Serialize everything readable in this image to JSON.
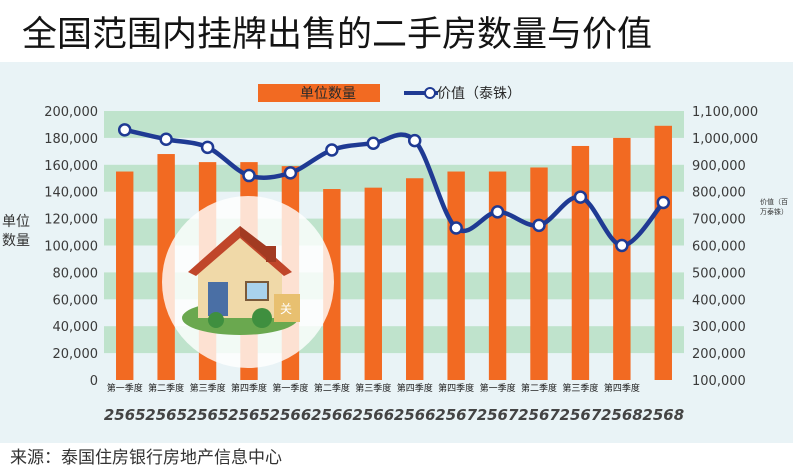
{
  "title": "全国范围内挂牌出售的二手房数量与价值",
  "source": "来源：泰国住房银行房地产信息中心",
  "house_label": "关",
  "colors": {
    "bar": "#f26a22",
    "line": "#1f3a93",
    "band": "#bfe3cc",
    "panel": "#e9f3f6"
  },
  "icons": [
    "house-icon"
  ],
  "chart_data": {
    "type": "bar",
    "legend_placement": "top-center",
    "grid": true,
    "ylabel": "单位数量",
    "y2label": "价值（百万泰铢）",
    "ylim": [
      0,
      200000
    ],
    "y2lim": [
      100000,
      1100000
    ],
    "y_ticks": [
      "0",
      "20,000",
      "40,000",
      "60,000",
      "80,000",
      "100,000",
      "120,000",
      "140,000",
      "160,000",
      "180,000",
      "200,000"
    ],
    "y2_ticks": [
      "100,000",
      "200,000",
      "300,000",
      "400,000",
      "500,000",
      "600,000",
      "700,000",
      "800,000",
      "900,000",
      "1,000,000",
      "1,100,000"
    ],
    "categories": [
      "第一季度",
      "第二季度",
      "第三季度",
      "第四季度",
      "第一季度",
      "第二季度",
      "第三季度",
      "第四季度",
      "第四季度",
      "第一季度",
      "第二季度",
      "第三季度",
      "第四季度",
      ""
    ],
    "years": [
      "2565",
      "2565",
      "2565",
      "2565",
      "2566",
      "2566",
      "2566",
      "2566",
      "2567",
      "2567",
      "2567",
      "2567",
      "2568",
      "2568"
    ],
    "series": [
      {
        "name": "单位数量",
        "type": "bar",
        "axis": "left",
        "values": [
          155000,
          168000,
          162000,
          162000,
          159000,
          142000,
          143000,
          150000,
          155000,
          155000,
          158000,
          174000,
          180000,
          189000
        ]
      },
      {
        "name": "价值（泰铢）",
        "type": "line",
        "axis": "right",
        "values": [
          1030000,
          995000,
          965000,
          860000,
          870000,
          955000,
          980000,
          990000,
          665000,
          725000,
          675000,
          780000,
          600000,
          760000
        ]
      }
    ]
  }
}
